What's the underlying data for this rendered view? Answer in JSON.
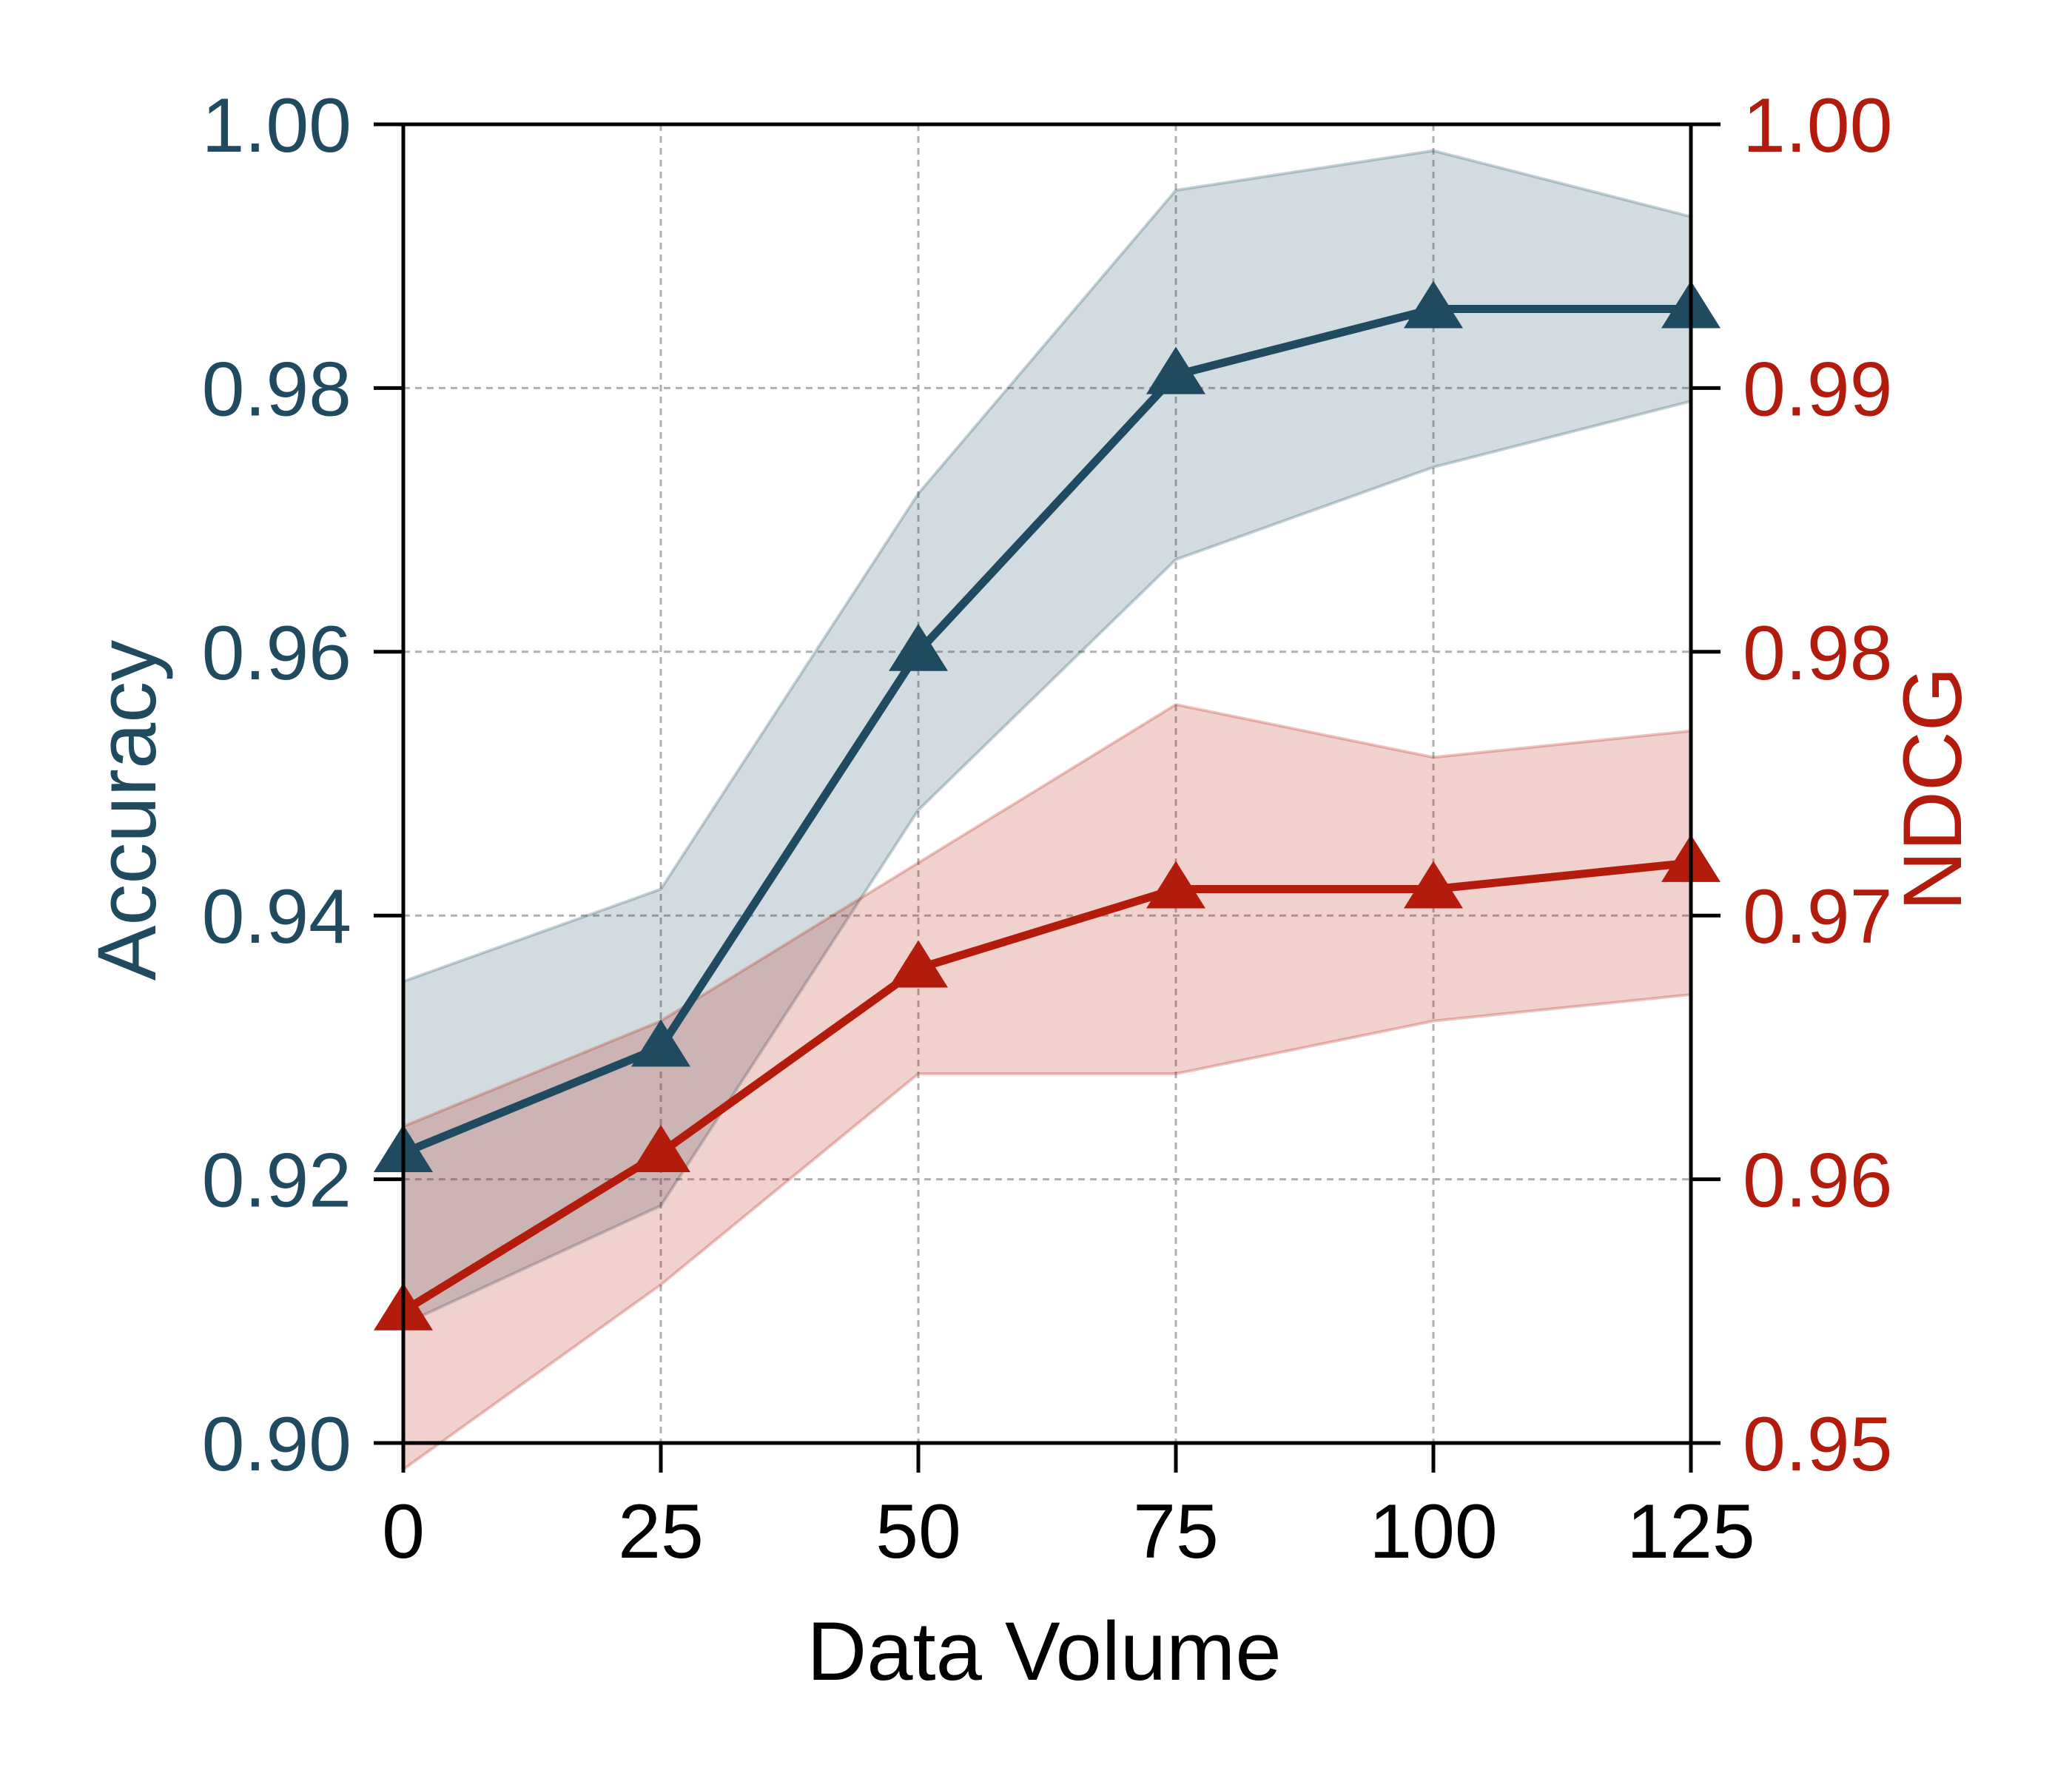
{
  "chart_data": {
    "type": "line",
    "title": "",
    "xlabel": "Data Volume",
    "ylabel": "Accuracy",
    "ylabel_right": "NDCG",
    "x": [
      0,
      25,
      50,
      75,
      100,
      125
    ],
    "x_ticks": [
      "0",
      "25",
      "50",
      "75",
      "100",
      "125"
    ],
    "xlim": [
      0,
      125
    ],
    "ylim": [
      0.9,
      1.0
    ],
    "y_ticks": [
      "0.90",
      "0.92",
      "0.94",
      "0.96",
      "0.98",
      "1.00"
    ],
    "ylim_right": [
      0.95,
      1.0
    ],
    "y_ticks_right": [
      "0.95",
      "0.96",
      "0.97",
      "0.98",
      "0.99",
      "1.00"
    ],
    "grid": true,
    "legend": "none",
    "marker": "triangle",
    "series": [
      {
        "axis": "left",
        "values": [
          0.922,
          0.93,
          0.96,
          0.981,
          0.986,
          0.986
        ],
        "lower": [
          0.909,
          0.918,
          0.948,
          0.967,
          0.974,
          0.979
        ],
        "upper": [
          0.935,
          0.942,
          0.972,
          0.995,
          0.998,
          0.993
        ],
        "color": "#1f4a60"
      },
      {
        "axis": "right",
        "values": [
          0.955,
          0.961,
          0.968,
          0.971,
          0.971,
          0.972
        ],
        "lower": [
          0.949,
          0.956,
          0.964,
          0.964,
          0.966,
          0.967
        ],
        "upper": [
          0.962,
          0.966,
          0.972,
          0.978,
          0.976,
          0.977
        ],
        "color": "#b31b0c"
      }
    ],
    "colors": {
      "axis": "#000000",
      "grid": "#b0b0b0",
      "left_axis_text": "#1f4a60",
      "right_axis_text": "#b31b0c"
    }
  }
}
